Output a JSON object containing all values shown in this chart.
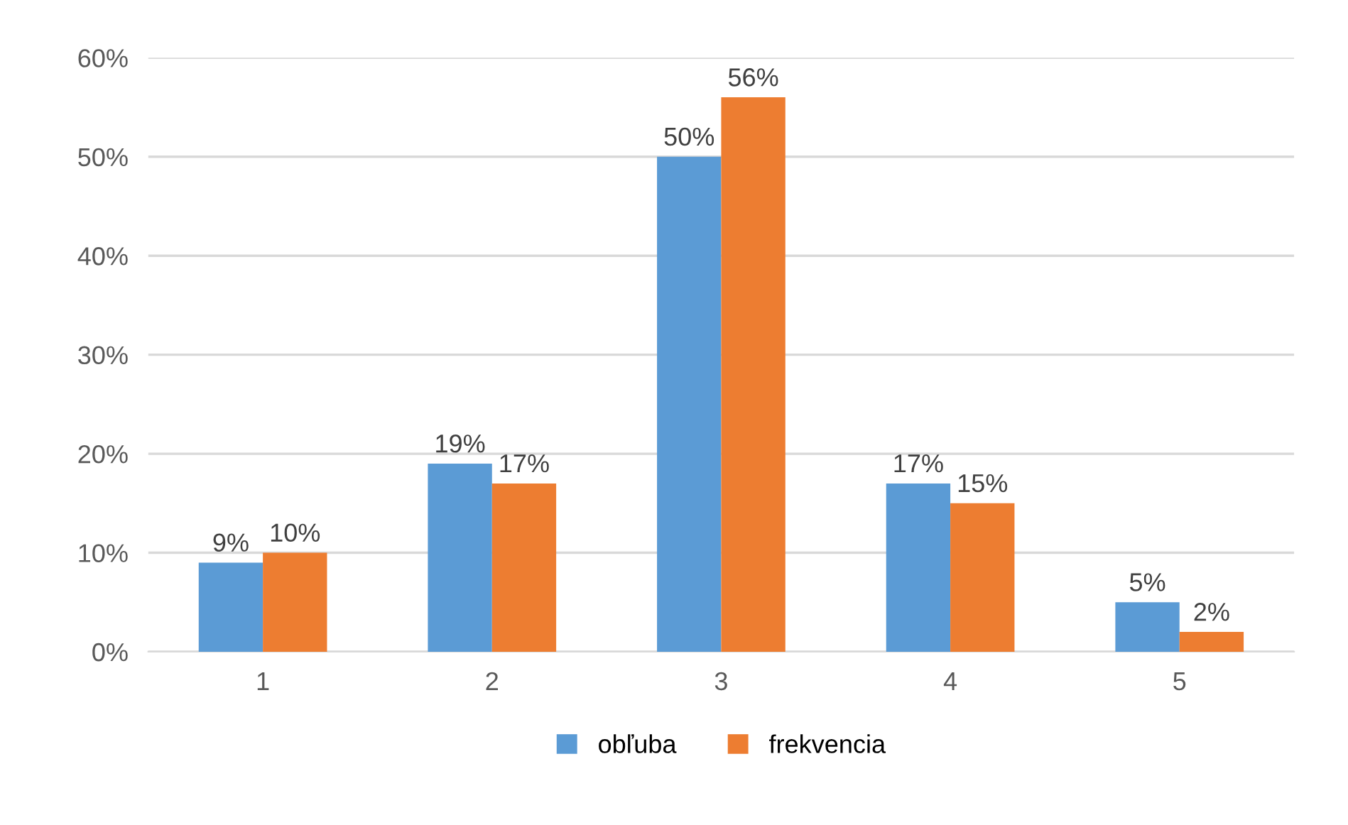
{
  "chart_data": {
    "type": "bar",
    "categories": [
      "1",
      "2",
      "3",
      "4",
      "5"
    ],
    "series": [
      {
        "name": "obľuba",
        "color": "#5b9bd5",
        "values": [
          9,
          19,
          50,
          17,
          5
        ],
        "value_labels": [
          "9%",
          "19%",
          "50%",
          "17%",
          "5%"
        ]
      },
      {
        "name": "frekvencia",
        "color": "#ed7d31",
        "values": [
          10,
          17,
          56,
          15,
          2
        ],
        "value_labels": [
          "10%",
          "17%",
          "56%",
          "15%",
          "2%"
        ]
      }
    ],
    "ylim": [
      0,
      60
    ],
    "yticks": [
      {
        "value": 0,
        "label": "0%"
      },
      {
        "value": 10,
        "label": "10%"
      },
      {
        "value": 20,
        "label": "20%"
      },
      {
        "value": 30,
        "label": "30%"
      },
      {
        "value": 40,
        "label": "40%"
      },
      {
        "value": 50,
        "label": "50%"
      },
      {
        "value": 60,
        "label": "60%"
      }
    ],
    "grid": "y",
    "legend": "bottom"
  }
}
